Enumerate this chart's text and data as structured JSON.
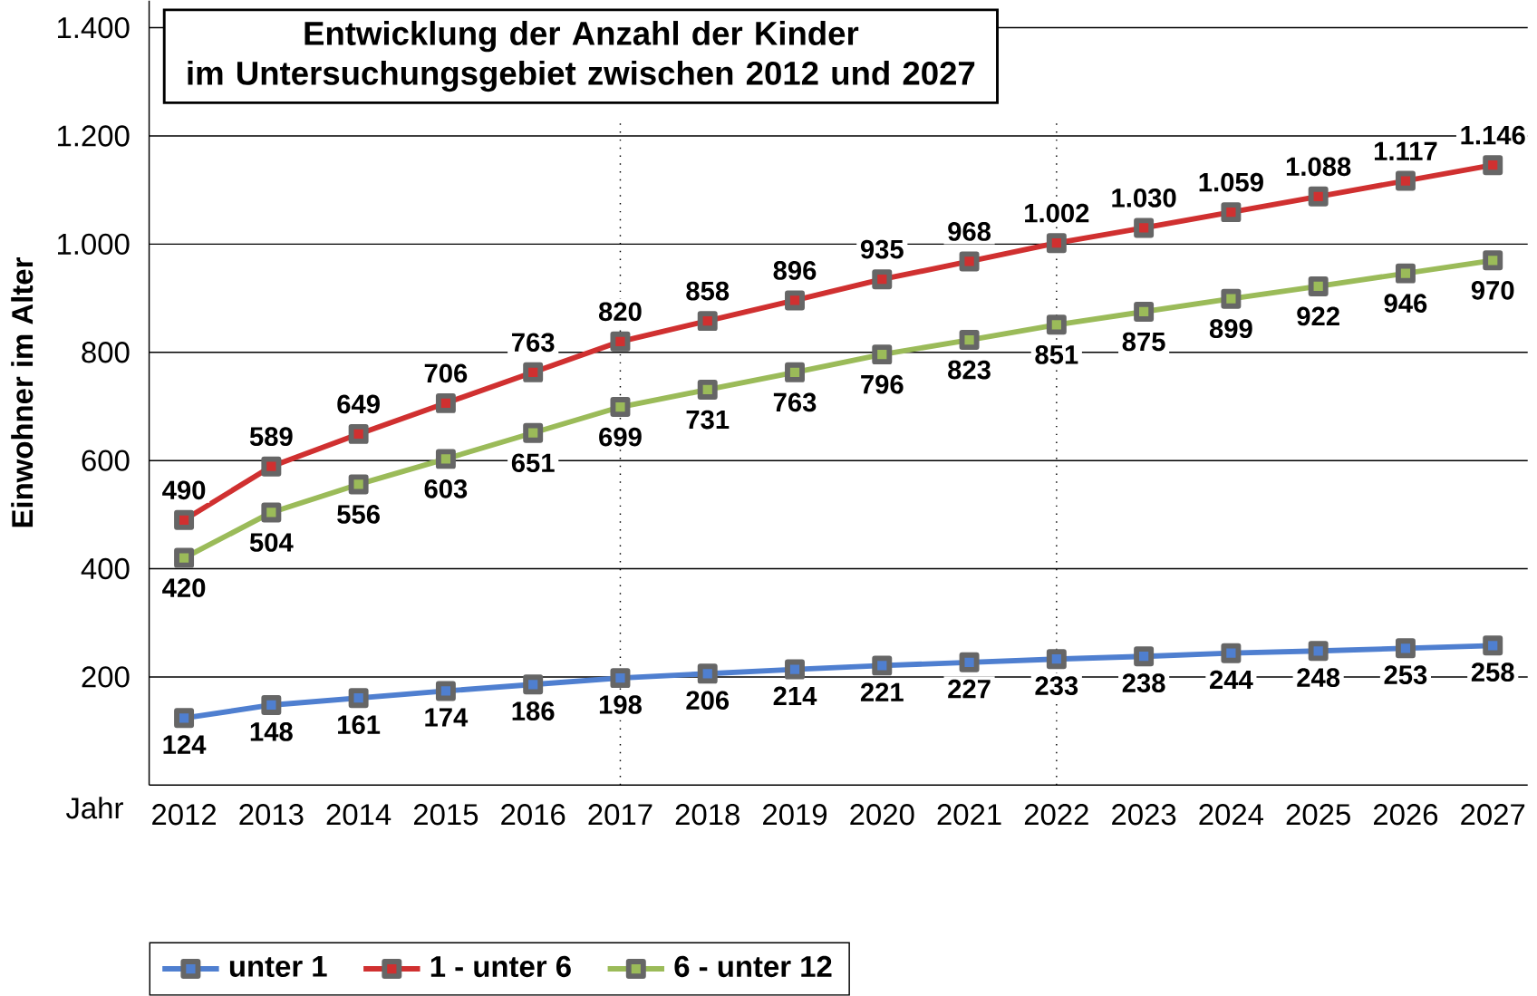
{
  "chart_data": {
    "type": "line",
    "title": "Entwicklung der Anzahl der Kinder\nim Untersuchungsgebiet zwischen 2012 und 2027",
    "xlabel": "Jahr",
    "ylabel": "Einwohner im Alter",
    "x": [
      2012,
      2013,
      2014,
      2015,
      2016,
      2017,
      2018,
      2019,
      2020,
      2021,
      2022,
      2023,
      2024,
      2025,
      2026,
      2027
    ],
    "xlim": [
      2011.6,
      2027.4
    ],
    "xticks": [
      2012,
      2013,
      2014,
      2015,
      2016,
      2017,
      2018,
      2019,
      2020,
      2021,
      2022,
      2023,
      2024,
      2025,
      2026,
      2027
    ],
    "ylim": [
      0,
      1450
    ],
    "yticks": [
      {
        "value": 200,
        "label": "200"
      },
      {
        "value": 400,
        "label": "400"
      },
      {
        "value": 600,
        "label": "600"
      },
      {
        "value": 800,
        "label": "800"
      },
      {
        "value": 1000,
        "label": "1.000"
      },
      {
        "value": 1200,
        "label": "1.200"
      },
      {
        "value": 1400,
        "label": "1.400"
      }
    ],
    "series": [
      {
        "name": "unter 1",
        "color": "#4f7fd0",
        "values": [
          124,
          148,
          161,
          174,
          186,
          198,
          206,
          214,
          221,
          227,
          233,
          238,
          244,
          248,
          253,
          258
        ],
        "value_labels": [
          "124",
          "148",
          "161",
          "174",
          "186",
          "198",
          "206",
          "214",
          "221",
          "227",
          "233",
          "238",
          "244",
          "248",
          "253",
          "258"
        ]
      },
      {
        "name": "1 - unter 6",
        "color": "#d03030",
        "values": [
          490,
          589,
          649,
          706,
          763,
          820,
          858,
          896,
          935,
          968,
          1002,
          1030,
          1059,
          1088,
          1117,
          1146
        ],
        "value_labels": [
          "490",
          "589",
          "649",
          "706",
          "763",
          "820",
          "858",
          "896",
          "935",
          "968",
          "1.002",
          "1.030",
          "1.059",
          "1.088",
          "1.117",
          "1.146"
        ]
      },
      {
        "name": "6 - unter 12",
        "color": "#9bbb59",
        "values": [
          420,
          504,
          556,
          603,
          651,
          699,
          731,
          763,
          796,
          823,
          851,
          875,
          899,
          922,
          946,
          970
        ],
        "value_labels": [
          "420",
          "504",
          "556",
          "603",
          "651",
          "699",
          "731",
          "763",
          "796",
          "823",
          "851",
          "875",
          "899",
          "922",
          "946",
          "970"
        ]
      }
    ],
    "ref_lines": [
      {
        "axis": "x",
        "value": 2017,
        "line_style": "dotted"
      },
      {
        "axis": "x",
        "value": 2022,
        "line_style": "dotted"
      }
    ],
    "grid": "y",
    "legend": "bottom",
    "marker": "square",
    "line_style": "solid"
  }
}
